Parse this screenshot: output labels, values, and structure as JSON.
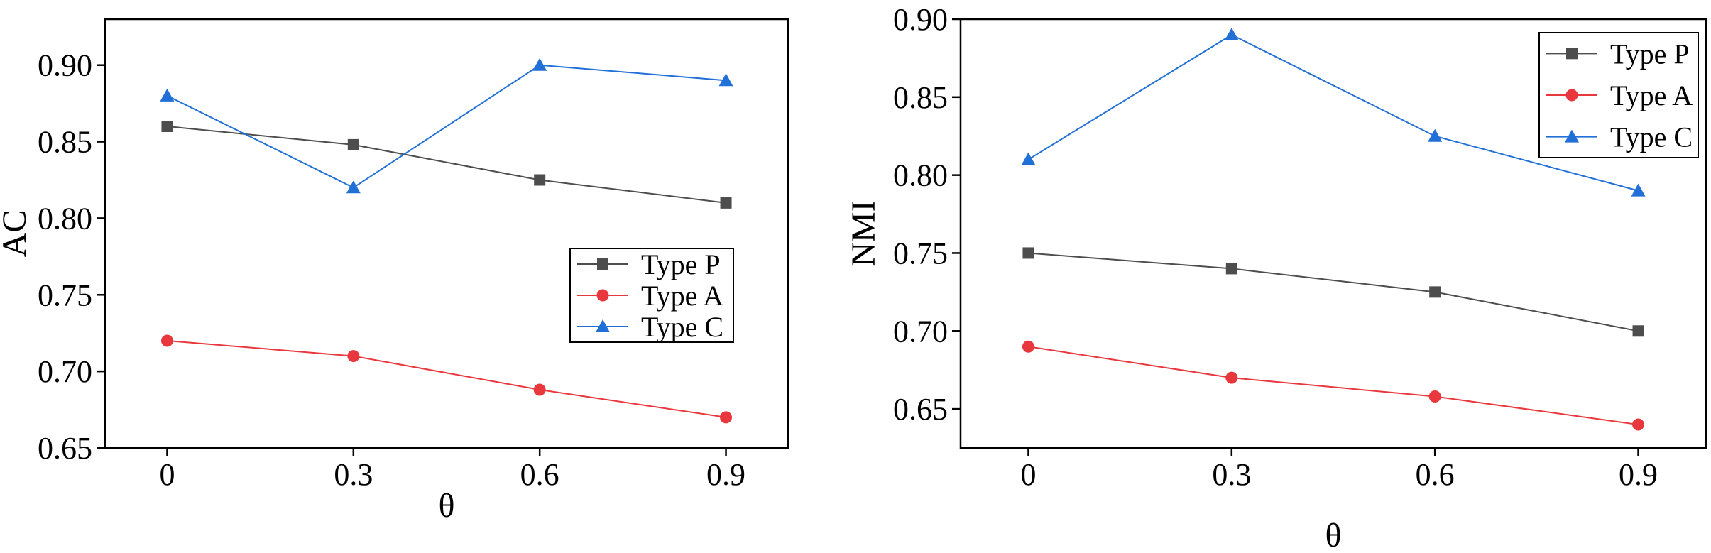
{
  "chart_data": [
    {
      "type": "line",
      "title": "",
      "xlabel": "θ",
      "ylabel": "AC",
      "x": [
        0,
        0.3,
        0.6,
        0.9
      ],
      "x_tick_labels": [
        "0",
        "0.3",
        "0.6",
        "0.9"
      ],
      "xlim": [
        -0.1,
        1.0
      ],
      "ylim": [
        0.65,
        0.93
      ],
      "y_ticks": [
        0.65,
        0.7,
        0.75,
        0.8,
        0.85,
        0.9
      ],
      "y_tick_labels": [
        "0.65",
        "0.70",
        "0.75",
        "0.80",
        "0.85",
        "0.90"
      ],
      "grid": false,
      "legend_position": "center-right",
      "series": [
        {
          "name": "Type P",
          "values": [
            0.86,
            0.848,
            0.825,
            0.81
          ],
          "color": "#4d4d4d",
          "marker": "square"
        },
        {
          "name": "Type A",
          "values": [
            0.72,
            0.71,
            0.688,
            0.67
          ],
          "color": "#e8383d",
          "marker": "circle"
        },
        {
          "name": "Type C",
          "values": [
            0.88,
            0.82,
            0.9,
            0.89
          ],
          "color": "#2070d8",
          "marker": "triangle"
        }
      ]
    },
    {
      "type": "line",
      "title": "",
      "xlabel": "θ",
      "ylabel": "NMI",
      "x": [
        0,
        0.3,
        0.6,
        0.9
      ],
      "x_tick_labels": [
        "0",
        "0.3",
        "0.6",
        "0.9"
      ],
      "xlim": [
        -0.1,
        1.0
      ],
      "ylim": [
        0.625,
        0.9
      ],
      "y_ticks": [
        0.65,
        0.7,
        0.75,
        0.8,
        0.85,
        0.9
      ],
      "y_tick_labels": [
        "0.65",
        "0.70",
        "0.75",
        "0.80",
        "0.85",
        "0.90"
      ],
      "grid": false,
      "legend_position": "top-right",
      "series": [
        {
          "name": "Type P",
          "values": [
            0.75,
            0.74,
            0.725,
            0.7
          ],
          "color": "#4d4d4d",
          "marker": "square"
        },
        {
          "name": "Type A",
          "values": [
            0.69,
            0.67,
            0.658,
            0.64
          ],
          "color": "#e8383d",
          "marker": "circle"
        },
        {
          "name": "Type C",
          "values": [
            0.81,
            0.89,
            0.825,
            0.79
          ],
          "color": "#2070d8",
          "marker": "triangle"
        }
      ]
    }
  ]
}
